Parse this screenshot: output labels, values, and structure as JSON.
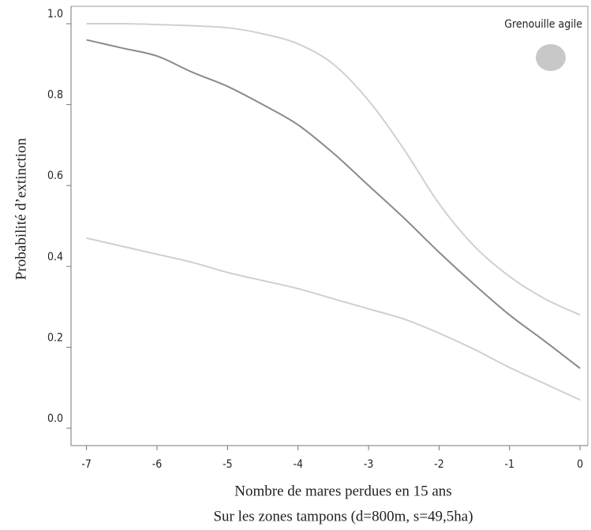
{
  "chart_data": {
    "type": "line",
    "legend_label": "Grenouille agile",
    "legend_color": "#c8c8c8",
    "y_label": "Probabilité d’extinction",
    "x_label": "Nombre de mares perdues en 15 ans",
    "x_label_note": "Sur les zones tampons (d=800m, s=49,5ha)",
    "x": [
      -7,
      -6.5,
      -6,
      -5.5,
      -5,
      -4.5,
      -4,
      -3.5,
      -3,
      -2.5,
      -2,
      -1.5,
      -1,
      -0.5,
      0
    ],
    "series": [
      {
        "color": "#d0d0d0",
        "values": [
          1.0,
          1.0,
          0.998,
          0.995,
          0.99,
          0.975,
          0.95,
          0.9,
          0.81,
          0.69,
          0.555,
          0.45,
          0.375,
          0.32,
          0.28
        ]
      },
      {
        "color": "#8a8a8a",
        "values": [
          0.96,
          0.94,
          0.92,
          0.88,
          0.845,
          0.8,
          0.75,
          0.68,
          0.6,
          0.52,
          0.435,
          0.355,
          0.28,
          0.215,
          0.148
        ]
      },
      {
        "color": "#d0d0d0",
        "values": [
          0.47,
          0.45,
          0.43,
          0.41,
          0.385,
          0.365,
          0.345,
          0.32,
          0.295,
          0.27,
          0.235,
          0.195,
          0.15,
          0.11,
          0.07
        ]
      }
    ],
    "xlim": [
      -7.22,
      0.11
    ],
    "ylim": [
      -0.043,
      1.043
    ],
    "xticks": [
      -7,
      -6,
      -5,
      -4,
      -3,
      -2,
      -1,
      0
    ],
    "yticks": [
      {
        "value": 0,
        "label": "0.0"
      },
      0.2,
      0.4,
      0.6,
      0.8,
      {
        "value": 1,
        "label": "1.0"
      }
    ]
  }
}
